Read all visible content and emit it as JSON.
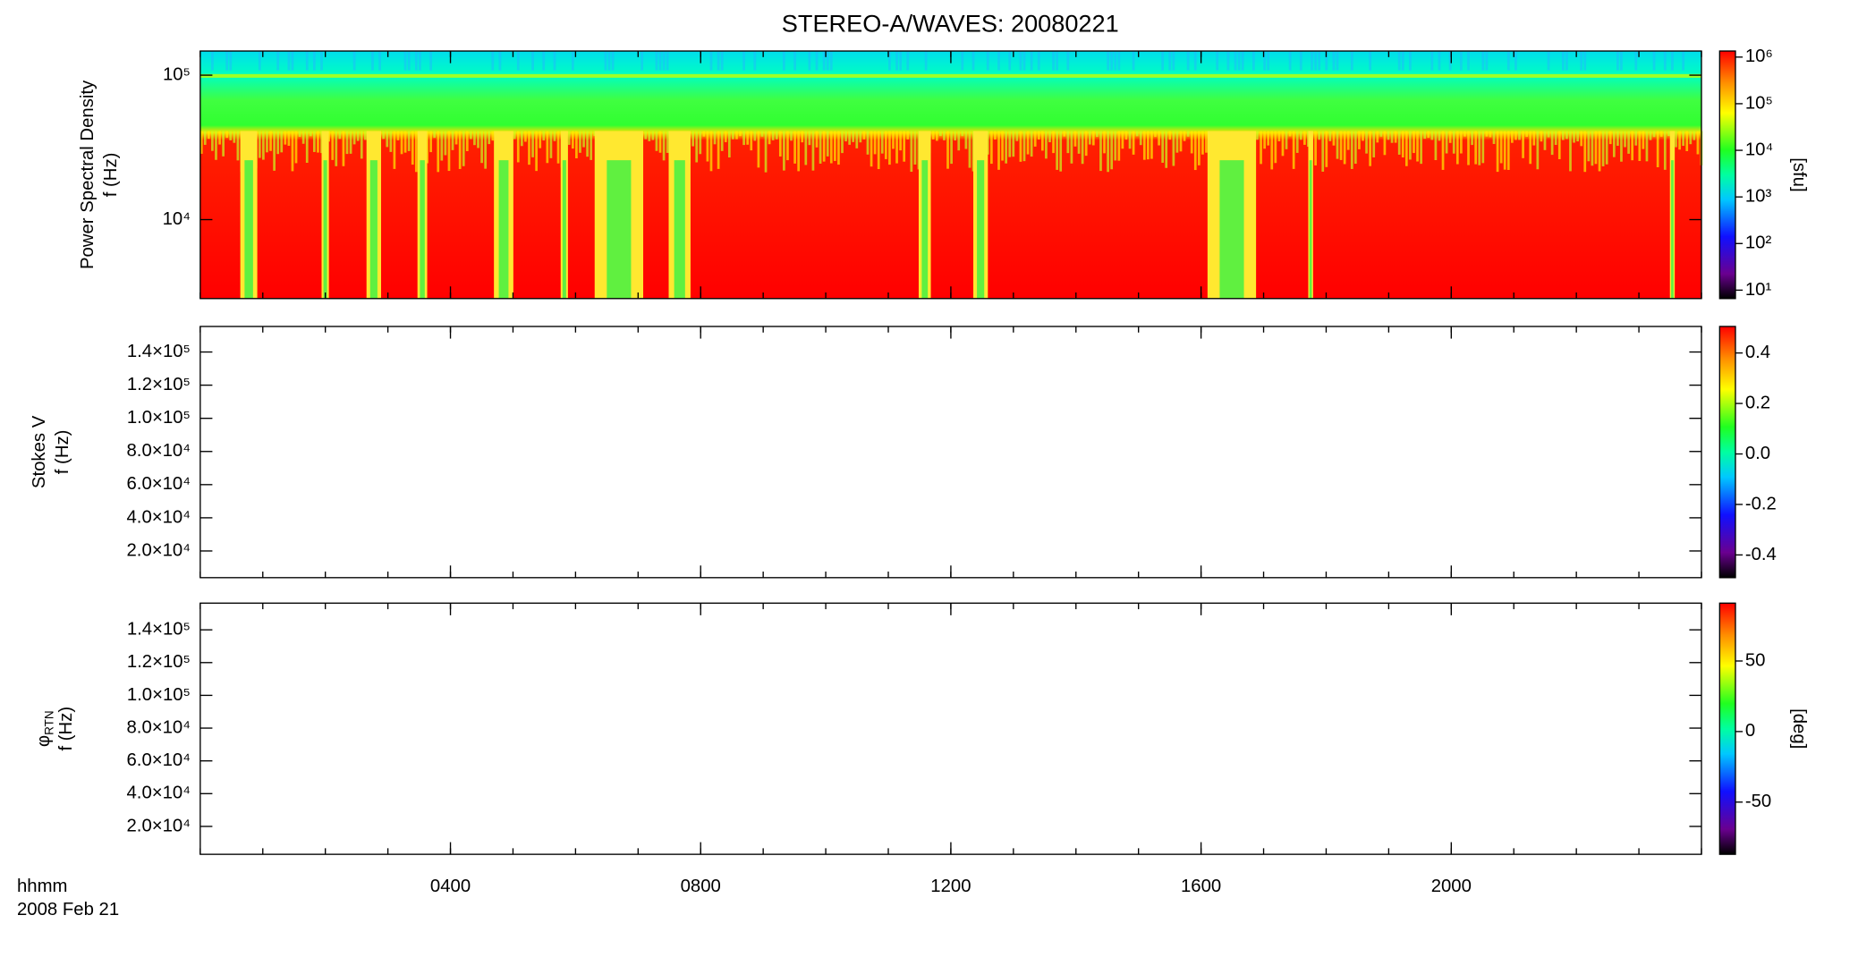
{
  "chart_data": {
    "type": "spectrogram",
    "title": "STEREO-A/WAVES: 20080221",
    "xlabel": [
      "hhmm",
      "2008 Feb 21"
    ],
    "xlim": [
      0,
      24
    ],
    "xticks": [
      {
        "value": 4,
        "label": "0400"
      },
      {
        "value": 8,
        "label": "0800"
      },
      {
        "value": 12,
        "label": "1200"
      },
      {
        "value": 16,
        "label": "1600"
      },
      {
        "value": 20,
        "label": "2000"
      }
    ],
    "panels": [
      {
        "ylabel": "Power Spectral Density",
        "ylabel2": "f (Hz)",
        "ylog": true,
        "ylim": [
          2840,
          147000
        ],
        "yticks": [
          {
            "value": 10000,
            "label": "10⁴"
          },
          {
            "value": 100000,
            "label": "10⁵"
          }
        ],
        "clog": true,
        "clim": [
          6.6,
          1350000
        ],
        "cticks": [
          {
            "value": 10,
            "label": "10¹"
          },
          {
            "value": 100,
            "label": "10²"
          },
          {
            "value": 1000,
            "label": "10³"
          },
          {
            "value": 10000,
            "label": "10⁴"
          },
          {
            "value": 100000,
            "label": "10⁵"
          },
          {
            "value": 1000000,
            "label": "10⁶"
          }
        ],
        "clabel": "[sfu]"
      },
      {
        "ylabel": "Stokes V",
        "ylabel2": "f (Hz)",
        "ylog": false,
        "ylim": [
          3900,
          155400
        ],
        "yticks": [
          {
            "value": 20000,
            "label": "2.0×10⁴"
          },
          {
            "value": 40000,
            "label": "4.0×10⁴"
          },
          {
            "value": 60000,
            "label": "6.0×10⁴"
          },
          {
            "value": 80000,
            "label": "8.0×10⁴"
          },
          {
            "value": 100000,
            "label": "1.0×10⁵"
          },
          {
            "value": 120000,
            "label": "1.2×10⁵"
          },
          {
            "value": 140000,
            "label": "1.4×10⁵"
          }
        ],
        "clog": false,
        "clim": [
          -0.49,
          0.505
        ],
        "cticks": [
          -0.4,
          -0.2,
          {
            "value": 0,
            "label": "0.0"
          },
          0.2,
          0.4
        ]
      },
      {
        "ylabel": "φ",
        "ylabel_sub": "RTN",
        "ylabel2": "f (Hz)",
        "ylog": false,
        "ylim": [
          2960,
          156300
        ],
        "yticks": [
          {
            "value": 20000,
            "label": "2.0×10⁴"
          },
          {
            "value": 40000,
            "label": "4.0×10⁴"
          },
          {
            "value": 60000,
            "label": "6.0×10⁴"
          },
          {
            "value": 80000,
            "label": "8.0×10⁴"
          },
          {
            "value": 100000,
            "label": "1.0×10⁵"
          },
          {
            "value": 120000,
            "label": "1.2×10⁵"
          },
          {
            "value": 140000,
            "label": "1.4×10⁵"
          }
        ],
        "clog": false,
        "clim": [
          -87,
          91
        ],
        "cticks": [
          -50,
          0,
          50
        ],
        "clabel": "[deg]"
      }
    ]
  }
}
